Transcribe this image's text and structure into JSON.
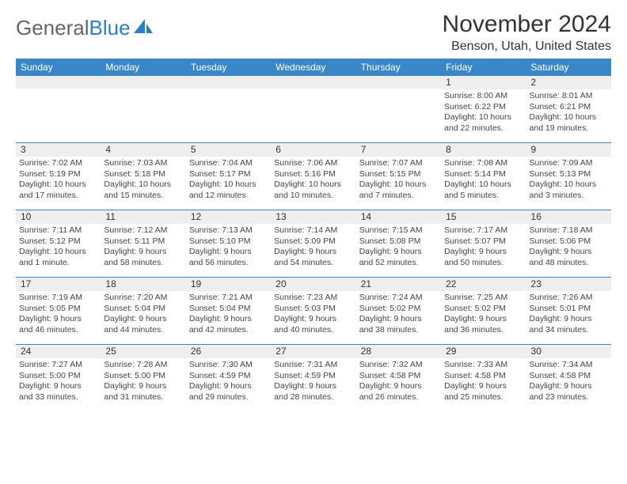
{
  "logo": {
    "text_gray": "General",
    "text_blue": "Blue"
  },
  "title": "November 2024",
  "location": "Benson, Utah, United States",
  "colors": {
    "header_bg": "#3a87c8",
    "header_fg": "#ffffff",
    "daynum_bg": "#eeeeee",
    "rule": "#3a87c8",
    "text": "#333333",
    "body_text": "#444444"
  },
  "weekdays": [
    "Sunday",
    "Monday",
    "Tuesday",
    "Wednesday",
    "Thursday",
    "Friday",
    "Saturday"
  ],
  "weeks": [
    [
      {
        "n": "",
        "lines": []
      },
      {
        "n": "",
        "lines": []
      },
      {
        "n": "",
        "lines": []
      },
      {
        "n": "",
        "lines": []
      },
      {
        "n": "",
        "lines": []
      },
      {
        "n": "1",
        "lines": [
          "Sunrise: 8:00 AM",
          "Sunset: 6:22 PM",
          "Daylight: 10 hours",
          "and 22 minutes."
        ]
      },
      {
        "n": "2",
        "lines": [
          "Sunrise: 8:01 AM",
          "Sunset: 6:21 PM",
          "Daylight: 10 hours",
          "and 19 minutes."
        ]
      }
    ],
    [
      {
        "n": "3",
        "lines": [
          "Sunrise: 7:02 AM",
          "Sunset: 5:19 PM",
          "Daylight: 10 hours",
          "and 17 minutes."
        ]
      },
      {
        "n": "4",
        "lines": [
          "Sunrise: 7:03 AM",
          "Sunset: 5:18 PM",
          "Daylight: 10 hours",
          "and 15 minutes."
        ]
      },
      {
        "n": "5",
        "lines": [
          "Sunrise: 7:04 AM",
          "Sunset: 5:17 PM",
          "Daylight: 10 hours",
          "and 12 minutes."
        ]
      },
      {
        "n": "6",
        "lines": [
          "Sunrise: 7:06 AM",
          "Sunset: 5:16 PM",
          "Daylight: 10 hours",
          "and 10 minutes."
        ]
      },
      {
        "n": "7",
        "lines": [
          "Sunrise: 7:07 AM",
          "Sunset: 5:15 PM",
          "Daylight: 10 hours",
          "and 7 minutes."
        ]
      },
      {
        "n": "8",
        "lines": [
          "Sunrise: 7:08 AM",
          "Sunset: 5:14 PM",
          "Daylight: 10 hours",
          "and 5 minutes."
        ]
      },
      {
        "n": "9",
        "lines": [
          "Sunrise: 7:09 AM",
          "Sunset: 5:13 PM",
          "Daylight: 10 hours",
          "and 3 minutes."
        ]
      }
    ],
    [
      {
        "n": "10",
        "lines": [
          "Sunrise: 7:11 AM",
          "Sunset: 5:12 PM",
          "Daylight: 10 hours",
          "and 1 minute."
        ]
      },
      {
        "n": "11",
        "lines": [
          "Sunrise: 7:12 AM",
          "Sunset: 5:11 PM",
          "Daylight: 9 hours",
          "and 58 minutes."
        ]
      },
      {
        "n": "12",
        "lines": [
          "Sunrise: 7:13 AM",
          "Sunset: 5:10 PM",
          "Daylight: 9 hours",
          "and 56 minutes."
        ]
      },
      {
        "n": "13",
        "lines": [
          "Sunrise: 7:14 AM",
          "Sunset: 5:09 PM",
          "Daylight: 9 hours",
          "and 54 minutes."
        ]
      },
      {
        "n": "14",
        "lines": [
          "Sunrise: 7:15 AM",
          "Sunset: 5:08 PM",
          "Daylight: 9 hours",
          "and 52 minutes."
        ]
      },
      {
        "n": "15",
        "lines": [
          "Sunrise: 7:17 AM",
          "Sunset: 5:07 PM",
          "Daylight: 9 hours",
          "and 50 minutes."
        ]
      },
      {
        "n": "16",
        "lines": [
          "Sunrise: 7:18 AM",
          "Sunset: 5:06 PM",
          "Daylight: 9 hours",
          "and 48 minutes."
        ]
      }
    ],
    [
      {
        "n": "17",
        "lines": [
          "Sunrise: 7:19 AM",
          "Sunset: 5:05 PM",
          "Daylight: 9 hours",
          "and 46 minutes."
        ]
      },
      {
        "n": "18",
        "lines": [
          "Sunrise: 7:20 AM",
          "Sunset: 5:04 PM",
          "Daylight: 9 hours",
          "and 44 minutes."
        ]
      },
      {
        "n": "19",
        "lines": [
          "Sunrise: 7:21 AM",
          "Sunset: 5:04 PM",
          "Daylight: 9 hours",
          "and 42 minutes."
        ]
      },
      {
        "n": "20",
        "lines": [
          "Sunrise: 7:23 AM",
          "Sunset: 5:03 PM",
          "Daylight: 9 hours",
          "and 40 minutes."
        ]
      },
      {
        "n": "21",
        "lines": [
          "Sunrise: 7:24 AM",
          "Sunset: 5:02 PM",
          "Daylight: 9 hours",
          "and 38 minutes."
        ]
      },
      {
        "n": "22",
        "lines": [
          "Sunrise: 7:25 AM",
          "Sunset: 5:02 PM",
          "Daylight: 9 hours",
          "and 36 minutes."
        ]
      },
      {
        "n": "23",
        "lines": [
          "Sunrise: 7:26 AM",
          "Sunset: 5:01 PM",
          "Daylight: 9 hours",
          "and 34 minutes."
        ]
      }
    ],
    [
      {
        "n": "24",
        "lines": [
          "Sunrise: 7:27 AM",
          "Sunset: 5:00 PM",
          "Daylight: 9 hours",
          "and 33 minutes."
        ]
      },
      {
        "n": "25",
        "lines": [
          "Sunrise: 7:28 AM",
          "Sunset: 5:00 PM",
          "Daylight: 9 hours",
          "and 31 minutes."
        ]
      },
      {
        "n": "26",
        "lines": [
          "Sunrise: 7:30 AM",
          "Sunset: 4:59 PM",
          "Daylight: 9 hours",
          "and 29 minutes."
        ]
      },
      {
        "n": "27",
        "lines": [
          "Sunrise: 7:31 AM",
          "Sunset: 4:59 PM",
          "Daylight: 9 hours",
          "and 28 minutes."
        ]
      },
      {
        "n": "28",
        "lines": [
          "Sunrise: 7:32 AM",
          "Sunset: 4:58 PM",
          "Daylight: 9 hours",
          "and 26 minutes."
        ]
      },
      {
        "n": "29",
        "lines": [
          "Sunrise: 7:33 AM",
          "Sunset: 4:58 PM",
          "Daylight: 9 hours",
          "and 25 minutes."
        ]
      },
      {
        "n": "30",
        "lines": [
          "Sunrise: 7:34 AM",
          "Sunset: 4:58 PM",
          "Daylight: 9 hours",
          "and 23 minutes."
        ]
      }
    ]
  ]
}
